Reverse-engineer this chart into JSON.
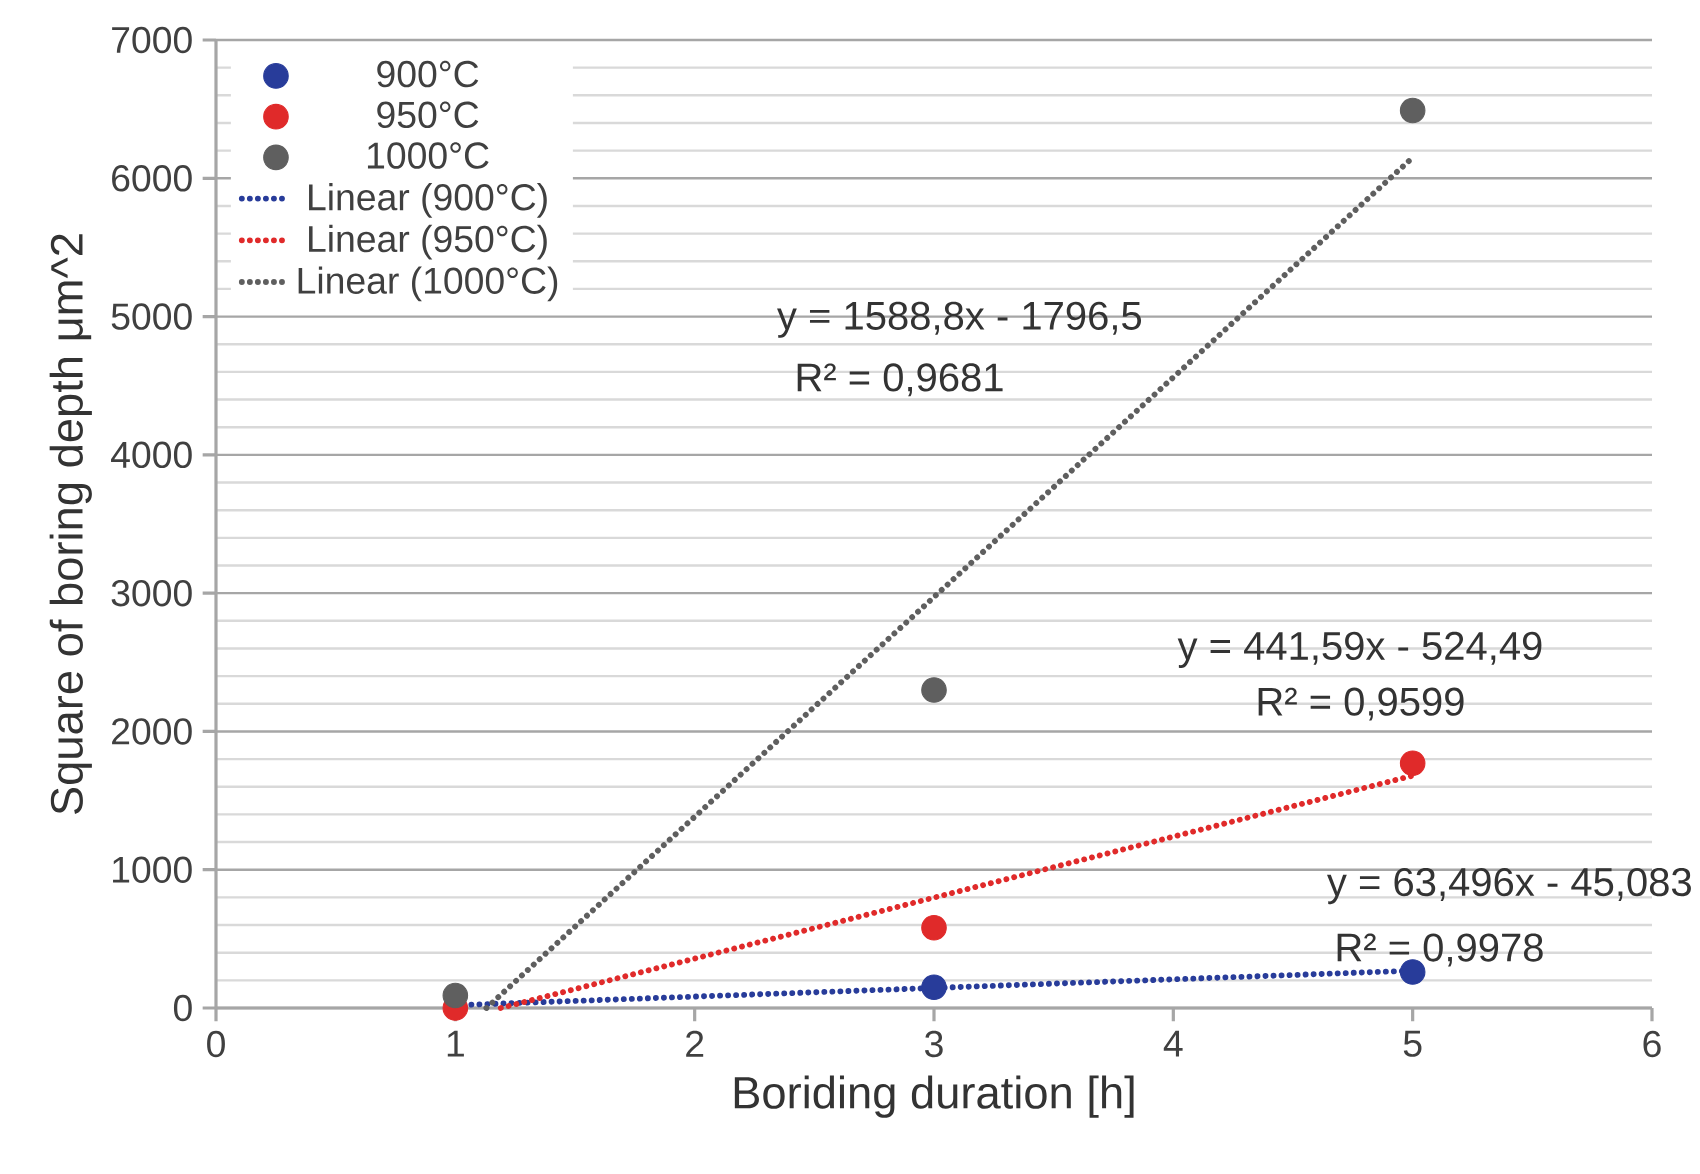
{
  "chart_data": {
    "type": "scatter",
    "xlabel": "Boriding duration [h]",
    "ylabel": "Square of boring depth  μm^2",
    "xlim": [
      0,
      6
    ],
    "ylim": [
      0,
      7000
    ],
    "xticks": [
      0,
      1,
      2,
      3,
      4,
      5,
      6
    ],
    "yticks": [
      0,
      1000,
      2000,
      3000,
      4000,
      5000,
      6000,
      7000
    ],
    "grid": "y",
    "legend": "top left",
    "series": [
      {
        "name": "900°C",
        "marker": "circle",
        "color": "#283c9a",
        "x": [
          3,
          5
        ],
        "values": [
          150,
          260
        ]
      },
      {
        "name": "950°C",
        "marker": "circle",
        "color": "#e02a2a",
        "x": [
          1,
          3,
          5
        ],
        "values": [
          0,
          580,
          1770
        ]
      },
      {
        "name": "1000°C",
        "marker": "circle",
        "color": "#5f5f5f",
        "x": [
          1,
          3,
          5
        ],
        "values": [
          90,
          2300,
          6490
        ]
      },
      {
        "name": "Linear (900°C)",
        "type": "line",
        "line_style": "dotted",
        "marker": "none",
        "color": "#283c9a",
        "x": [
          1,
          5
        ],
        "values": [
          20,
          270
        ]
      },
      {
        "name": "Linear (950°C)",
        "type": "line",
        "line_style": "dotted",
        "marker": "none",
        "color": "#e02a2a",
        "x": [
          1.19,
          5
        ],
        "values": [
          0,
          1680
        ]
      },
      {
        "name": "Linear (1000°C)",
        "type": "line",
        "line_style": "dotted",
        "marker": "none",
        "color": "#5f5f5f",
        "x": [
          1.13,
          5
        ],
        "values": [
          0,
          6150
        ]
      }
    ],
    "annotations": [
      "y = 1588,8x - 1796,5",
      "R² = 0,9681",
      "y = 441,59x - 524,49",
      "R² = 0,9599",
      "y = 63,496x - 45,083",
      "R² = 0,9978"
    ]
  }
}
